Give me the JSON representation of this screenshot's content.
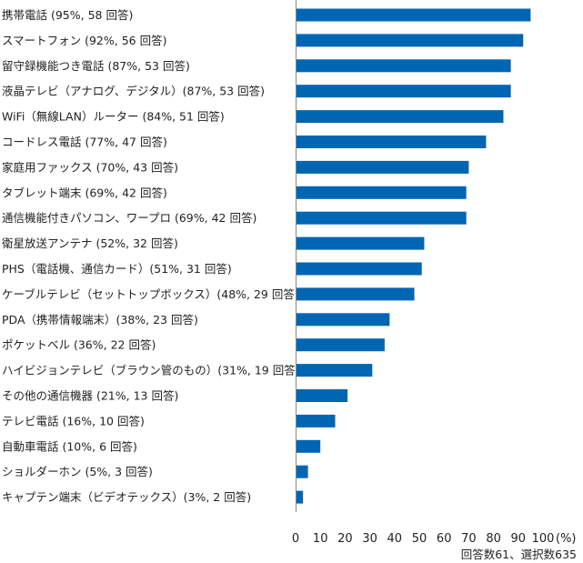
{
  "chart_data": {
    "type": "bar",
    "orientation": "horizontal",
    "categories": [
      "携帯電話 (95%, 58 回答)",
      "スマートフォン (92%, 56 回答)",
      "留守録機能つき電話 (87%, 53 回答)",
      "液晶テレビ（アナログ、デジタル）(87%, 53 回答)",
      "WiFi（無線LAN）ルーター (84%, 51 回答)",
      "コードレス電話 (77%, 47 回答)",
      "家庭用ファックス (70%, 43 回答)",
      "タブレット端末 (69%, 42 回答)",
      "通信機能付きパソコン、ワープロ (69%, 42 回答)",
      "衛星放送アンテナ (52%, 32 回答)",
      "PHS（電話機、通信カード）(51%, 31 回答)",
      "ケーブルテレビ（セットトップボックス）(48%, 29 回答)",
      "PDA（携帯情報端末）(38%, 23 回答)",
      "ポケットベル (36%, 22 回答)",
      "ハイビジョンテレビ（ブラウン管のもの）(31%, 19 回答)",
      "その他の通信機器 (21%, 13 回答)",
      "テレビ電話 (16%, 10 回答)",
      "自動車電話 (10%, 6 回答)",
      "ショルダーホン (5%, 3 回答)",
      "キャプテン端末（ビデオテックス）(3%, 2 回答)"
    ],
    "values": [
      95,
      92,
      87,
      87,
      84,
      77,
      70,
      69,
      69,
      52,
      51,
      48,
      38,
      36,
      31,
      21,
      16,
      10,
      5,
      3
    ],
    "xlim": [
      0,
      100
    ],
    "xticks": [
      0,
      10,
      20,
      30,
      40,
      50,
      60,
      70,
      80,
      90,
      100
    ],
    "xunit": "(%)",
    "note": "回答数61、選択数635",
    "grid": false,
    "bar_color": "#0066b3"
  }
}
